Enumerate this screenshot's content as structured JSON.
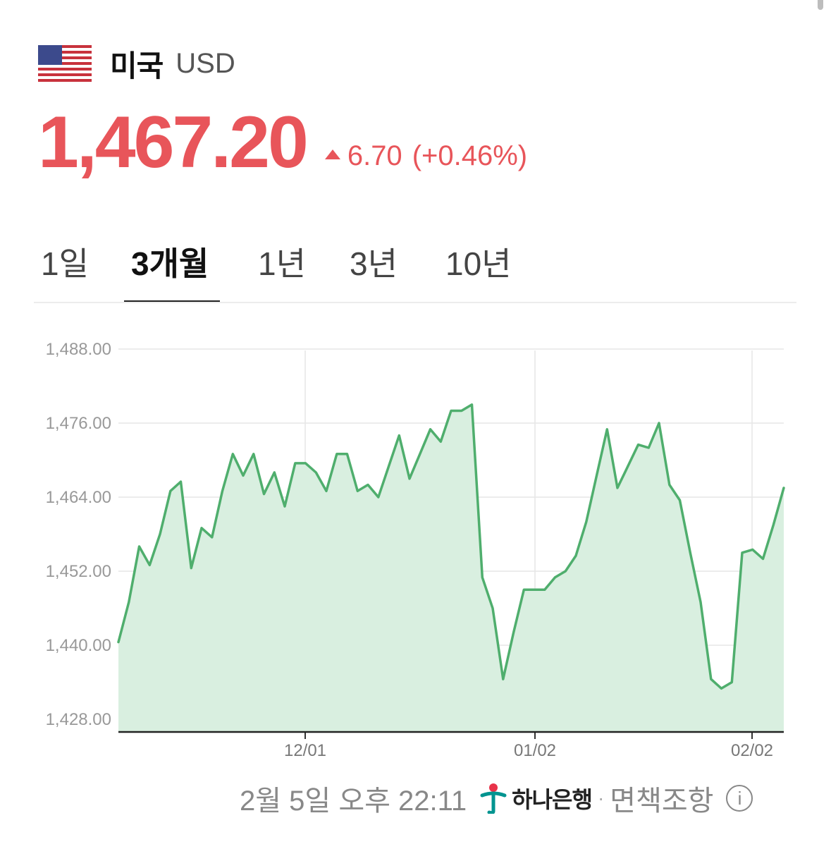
{
  "header": {
    "country": "미국",
    "currency": "USD",
    "flag_icon": "us-flag-icon"
  },
  "quote": {
    "rate": "1,467.20",
    "change": "6.70",
    "change_pct": "(+0.46%)",
    "direction_icon": "up-triangle-icon",
    "color": "#e8555a"
  },
  "tabs": [
    {
      "label": "1일",
      "active": false
    },
    {
      "label": "3개월",
      "active": true
    },
    {
      "label": "1년",
      "active": false
    },
    {
      "label": "3년",
      "active": false
    },
    {
      "label": "10년",
      "active": false
    }
  ],
  "chart_data": {
    "type": "area",
    "y_ticks": [
      "1,488.00",
      "1,476.00",
      "1,464.00",
      "1,452.00",
      "1,440.00",
      "1,428.00"
    ],
    "x_ticks": [
      "12/01",
      "01/02",
      "02/02"
    ],
    "ylim": [
      1428,
      1488
    ],
    "grid": true,
    "line_color": "#4fae6d",
    "fill_color": "#d9efe0",
    "values": [
      1440.5,
      1447,
      1456,
      1453,
      1458,
      1465,
      1466.5,
      1452.5,
      1459,
      1457.5,
      1465,
      1471,
      1467.5,
      1471,
      1464.5,
      1468,
      1462.5,
      1469.5,
      1469.5,
      1468,
      1465,
      1471,
      1471,
      1465,
      1466,
      1464,
      1469,
      1474,
      1467,
      1471,
      1475,
      1473,
      1478,
      1478,
      1479,
      1451,
      1446,
      1434.5,
      1442,
      1449,
      1449,
      1449,
      1451,
      1452,
      1454.5,
      1460,
      1467.5,
      1475,
      1465.5,
      1469,
      1472.5,
      1472,
      1476,
      1466,
      1463.5,
      1455,
      1447,
      1434.5,
      1433,
      1434,
      1455,
      1455.5,
      1454,
      1459.5,
      1465.5
    ]
  },
  "footer": {
    "timestamp": "2월 5일 오후 22:11",
    "bank_logo_icon": "hana-bank-logo-icon",
    "bank_name": "하나은행",
    "separator": "·",
    "disclaimer": "면책조항",
    "info_icon_glyph": "i"
  }
}
